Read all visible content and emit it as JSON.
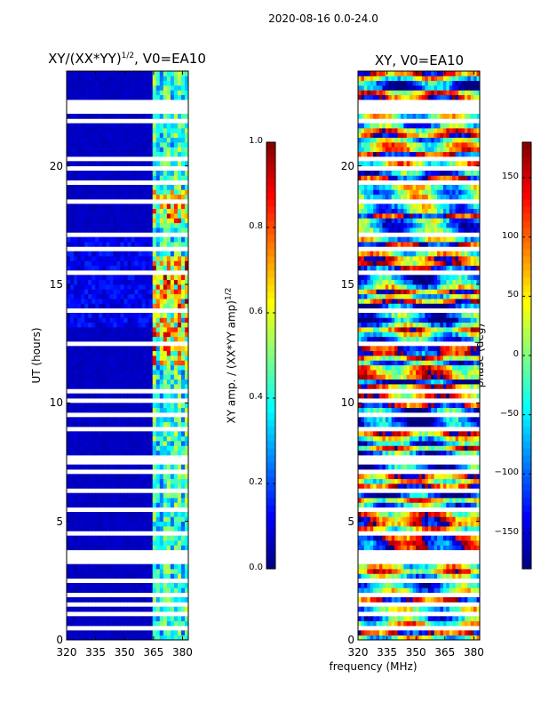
{
  "figure_title": "2020-08-16 0.0-24.0",
  "chart_data": [
    {
      "type": "heatmap",
      "title": "XY/(XX*YY)",
      "title_exponent": "1/2",
      "title_suffix": ", V0=EA10",
      "xlabel": "",
      "ylabel": "UT (hours)",
      "xlim": [
        320,
        383
      ],
      "ylim": [
        0,
        24
      ],
      "x_ticks": [
        320,
        335,
        350,
        365,
        380
      ],
      "y_ticks": [
        0,
        5,
        10,
        15,
        20
      ],
      "colorbar": {
        "label": "XY amp. / (XX*YY amp)",
        "label_exponent": "1/2",
        "range": [
          0.0,
          1.0
        ],
        "ticks": [
          "0.0",
          "0.2",
          "0.4",
          "0.6",
          "0.8",
          "1.0"
        ],
        "colormap": "jet"
      },
      "description_values": {
        "background_level": 0.05,
        "band_edge_MHz": 363,
        "band_level_range": [
          0.2,
          0.95
        ]
      }
    },
    {
      "type": "heatmap",
      "title": "XY, V0=EA10",
      "xlabel": "frequency (MHz)",
      "ylabel": "",
      "xlim": [
        320,
        383
      ],
      "ylim": [
        0,
        24
      ],
      "x_ticks": [
        320,
        335,
        350,
        365,
        380
      ],
      "y_ticks": [
        0,
        5,
        10,
        15,
        20
      ],
      "colorbar": {
        "label": "phase (deg)",
        "range": [
          -180,
          180
        ],
        "ticks": [
          "150",
          "100",
          "50",
          "0",
          "−50",
          "−100",
          "−150"
        ],
        "colormap": "jet"
      }
    }
  ],
  "gaps_hours": [
    0.55,
    1.15,
    1.55,
    1.85,
    2.55,
    3.25,
    3.45,
    3.6,
    4.55,
    5.4,
    5.55,
    6.3,
    7.05,
    7.6,
    7.75,
    8.9,
    9.55,
    10.0,
    10.55,
    11.2,
    12.5,
    13.95,
    15.45,
    16.5,
    17.15,
    18.45,
    19.25,
    19.95,
    20.25,
    21.2,
    21.9,
    22.35,
    22.55,
    22.75
  ]
}
